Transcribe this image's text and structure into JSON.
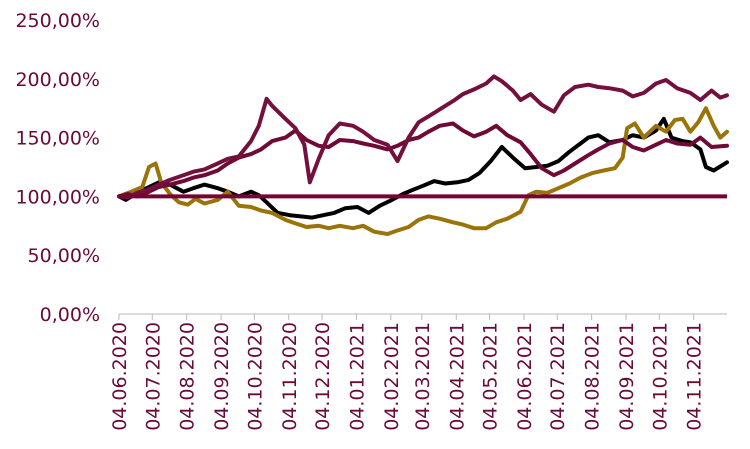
{
  "chart_data": {
    "type": "line",
    "title": "",
    "xlabel": "",
    "ylabel": "",
    "x_range": [
      "2020-06-04",
      "2021-12-04"
    ],
    "ylim": [
      0,
      250
    ],
    "grid": false,
    "legend": "none",
    "y_ticks": [
      {
        "value": 0,
        "label": "0,00%"
      },
      {
        "value": 50,
        "label": "50,00%"
      },
      {
        "value": 100,
        "label": "100,00%"
      },
      {
        "value": 150,
        "label": "150,00%"
      },
      {
        "value": 200,
        "label": "200,00%"
      },
      {
        "value": 250,
        "label": "250,00%"
      }
    ],
    "x_ticks": [
      {
        "date": "2020-06-04",
        "label": "04.06.2020"
      },
      {
        "date": "2020-07-04",
        "label": "04.07.2020"
      },
      {
        "date": "2020-08-04",
        "label": "04.08.2020"
      },
      {
        "date": "2020-09-04",
        "label": "04.09.2020"
      },
      {
        "date": "2020-10-04",
        "label": "04.10.2020"
      },
      {
        "date": "2020-11-04",
        "label": "04.11.2020"
      },
      {
        "date": "2020-12-04",
        "label": "04.12.2020"
      },
      {
        "date": "2021-01-04",
        "label": "04.01.2021"
      },
      {
        "date": "2021-02-04",
        "label": "04.02.2021"
      },
      {
        "date": "2021-03-04",
        "label": "04.03.2021"
      },
      {
        "date": "2021-04-04",
        "label": "04.04.2021"
      },
      {
        "date": "2021-05-04",
        "label": "04.05.2021"
      },
      {
        "date": "2021-06-04",
        "label": "04.06.2021"
      },
      {
        "date": "2021-07-04",
        "label": "04.07.2021"
      },
      {
        "date": "2021-08-04",
        "label": "04.08.2021"
      },
      {
        "date": "2021-09-04",
        "label": "04.09.2021"
      },
      {
        "date": "2021-10-04",
        "label": "04.10.2021"
      },
      {
        "date": "2021-11-04",
        "label": "04.11.2021"
      }
    ],
    "colors": {
      "axis_text": "#6a0a3a",
      "reference": "#730534"
    },
    "series": [
      {
        "color": "#000000",
        "points": [
          [
            "2020-06-04",
            100
          ],
          [
            "2020-06-10",
            97
          ],
          [
            "2020-06-20",
            103
          ],
          [
            "2020-07-01",
            108
          ],
          [
            "2020-07-10",
            112
          ],
          [
            "2020-07-20",
            110
          ],
          [
            "2020-08-01",
            104
          ],
          [
            "2020-08-10",
            107
          ],
          [
            "2020-08-20",
            110
          ],
          [
            "2020-09-01",
            107
          ],
          [
            "2020-09-10",
            104
          ],
          [
            "2020-09-20",
            100
          ],
          [
            "2020-10-01",
            104
          ],
          [
            "2020-10-08",
            101
          ],
          [
            "2020-10-15",
            95
          ],
          [
            "2020-10-25",
            86
          ],
          [
            "2020-11-05",
            84
          ],
          [
            "2020-11-15",
            83
          ],
          [
            "2020-11-25",
            82
          ],
          [
            "2020-12-05",
            84
          ],
          [
            "2020-12-15",
            86
          ],
          [
            "2020-12-25",
            90
          ],
          [
            "2021-01-05",
            91
          ],
          [
            "2021-01-15",
            86
          ],
          [
            "2021-01-25",
            92
          ],
          [
            "2021-02-05",
            97
          ],
          [
            "2021-02-15",
            102
          ],
          [
            "2021-02-25",
            106
          ],
          [
            "2021-03-05",
            109
          ],
          [
            "2021-03-15",
            113
          ],
          [
            "2021-03-25",
            111
          ],
          [
            "2021-04-05",
            112
          ],
          [
            "2021-04-15",
            114
          ],
          [
            "2021-04-25",
            120
          ],
          [
            "2021-05-05",
            130
          ],
          [
            "2021-05-15",
            142
          ],
          [
            "2021-05-25",
            133
          ],
          [
            "2021-06-05",
            124
          ],
          [
            "2021-06-15",
            125
          ],
          [
            "2021-06-25",
            126
          ],
          [
            "2021-07-05",
            130
          ],
          [
            "2021-07-15",
            138
          ],
          [
            "2021-07-25",
            145
          ],
          [
            "2021-08-01",
            150
          ],
          [
            "2021-08-10",
            152
          ],
          [
            "2021-08-20",
            146
          ],
          [
            "2021-09-01",
            148
          ],
          [
            "2021-09-10",
            152
          ],
          [
            "2021-09-20",
            150
          ],
          [
            "2021-10-01",
            156
          ],
          [
            "2021-10-08",
            166
          ],
          [
            "2021-10-15",
            150
          ],
          [
            "2021-10-25",
            147
          ],
          [
            "2021-11-01",
            146
          ],
          [
            "2021-11-10",
            140
          ],
          [
            "2021-11-15",
            125
          ],
          [
            "2021-11-22",
            122
          ],
          [
            "2021-12-04",
            129
          ]
        ]
      },
      {
        "color": "#9a7409",
        "points": [
          [
            "2020-06-04",
            100
          ],
          [
            "2020-06-15",
            104
          ],
          [
            "2020-06-25",
            108
          ],
          [
            "2020-07-01",
            125
          ],
          [
            "2020-07-07",
            128
          ],
          [
            "2020-07-12",
            112
          ],
          [
            "2020-07-20",
            102
          ],
          [
            "2020-07-28",
            95
          ],
          [
            "2020-08-05",
            93
          ],
          [
            "2020-08-12",
            98
          ],
          [
            "2020-08-20",
            94
          ],
          [
            "2020-09-01",
            97
          ],
          [
            "2020-09-10",
            104
          ],
          [
            "2020-09-20",
            92
          ],
          [
            "2020-10-01",
            91
          ],
          [
            "2020-10-10",
            88
          ],
          [
            "2020-10-20",
            86
          ],
          [
            "2020-11-01",
            80
          ],
          [
            "2020-11-10",
            77
          ],
          [
            "2020-11-20",
            74
          ],
          [
            "2020-12-01",
            75
          ],
          [
            "2020-12-10",
            73
          ],
          [
            "2020-12-20",
            75
          ],
          [
            "2021-01-01",
            73
          ],
          [
            "2021-01-10",
            75
          ],
          [
            "2021-01-20",
            70
          ],
          [
            "2021-02-01",
            68
          ],
          [
            "2021-02-10",
            71
          ],
          [
            "2021-02-20",
            74
          ],
          [
            "2021-03-01",
            80
          ],
          [
            "2021-03-10",
            83
          ],
          [
            "2021-03-20",
            81
          ],
          [
            "2021-04-01",
            78
          ],
          [
            "2021-04-10",
            76
          ],
          [
            "2021-04-20",
            73
          ],
          [
            "2021-05-01",
            73
          ],
          [
            "2021-05-10",
            78
          ],
          [
            "2021-05-20",
            81
          ],
          [
            "2021-06-01",
            87
          ],
          [
            "2021-06-08",
            101
          ],
          [
            "2021-06-15",
            104
          ],
          [
            "2021-06-25",
            103
          ],
          [
            "2021-07-05",
            107
          ],
          [
            "2021-07-15",
            111
          ],
          [
            "2021-07-25",
            116
          ],
          [
            "2021-08-05",
            120
          ],
          [
            "2021-08-15",
            122
          ],
          [
            "2021-08-25",
            124
          ],
          [
            "2021-09-01",
            133
          ],
          [
            "2021-09-05",
            158
          ],
          [
            "2021-09-12",
            162
          ],
          [
            "2021-09-20",
            150
          ],
          [
            "2021-10-01",
            160
          ],
          [
            "2021-10-10",
            155
          ],
          [
            "2021-10-18",
            165
          ],
          [
            "2021-10-25",
            166
          ],
          [
            "2021-11-01",
            155
          ],
          [
            "2021-11-08",
            163
          ],
          [
            "2021-11-15",
            175
          ],
          [
            "2021-11-22",
            160
          ],
          [
            "2021-11-28",
            150
          ],
          [
            "2021-12-04",
            155
          ]
        ]
      },
      {
        "color": "#6e0a35",
        "points": [
          [
            "2020-06-04",
            100
          ],
          [
            "2020-06-12",
            102
          ],
          [
            "2020-06-20",
            100
          ],
          [
            "2020-07-01",
            104
          ],
          [
            "2020-07-10",
            108
          ],
          [
            "2020-07-20",
            110
          ],
          [
            "2020-08-01",
            113
          ],
          [
            "2020-08-10",
            116
          ],
          [
            "2020-08-20",
            118
          ],
          [
            "2020-09-01",
            122
          ],
          [
            "2020-09-10",
            128
          ],
          [
            "2020-09-20",
            133
          ],
          [
            "2020-10-01",
            136
          ],
          [
            "2020-10-10",
            140
          ],
          [
            "2020-10-20",
            147
          ],
          [
            "2020-11-01",
            150
          ],
          [
            "2020-11-10",
            156
          ],
          [
            "2020-11-20",
            148
          ],
          [
            "2020-12-01",
            143
          ],
          [
            "2020-12-10",
            142
          ],
          [
            "2020-12-20",
            148
          ],
          [
            "2021-01-01",
            147
          ],
          [
            "2021-01-10",
            145
          ],
          [
            "2021-01-20",
            143
          ],
          [
            "2021-02-01",
            140
          ],
          [
            "2021-02-10",
            143
          ],
          [
            "2021-02-20",
            148
          ],
          [
            "2021-03-01",
            150
          ],
          [
            "2021-03-10",
            155
          ],
          [
            "2021-03-20",
            160
          ],
          [
            "2021-04-01",
            162
          ],
          [
            "2021-04-10",
            156
          ],
          [
            "2021-04-20",
            151
          ],
          [
            "2021-05-01",
            155
          ],
          [
            "2021-05-10",
            160
          ],
          [
            "2021-05-20",
            152
          ],
          [
            "2021-06-01",
            146
          ],
          [
            "2021-06-10",
            136
          ],
          [
            "2021-06-20",
            124
          ],
          [
            "2021-07-01",
            118
          ],
          [
            "2021-07-10",
            122
          ],
          [
            "2021-07-20",
            128
          ],
          [
            "2021-08-01",
            135
          ],
          [
            "2021-08-10",
            140
          ],
          [
            "2021-08-20",
            145
          ],
          [
            "2021-09-01",
            148
          ],
          [
            "2021-09-10",
            142
          ],
          [
            "2021-09-20",
            139
          ],
          [
            "2021-10-01",
            144
          ],
          [
            "2021-10-10",
            148
          ],
          [
            "2021-10-20",
            145
          ],
          [
            "2021-11-01",
            144
          ],
          [
            "2021-11-10",
            150
          ],
          [
            "2021-11-20",
            142
          ],
          [
            "2021-12-04",
            143
          ]
        ]
      },
      {
        "color": "#74103d",
        "points": [
          [
            "2020-06-04",
            100
          ],
          [
            "2020-06-12",
            99
          ],
          [
            "2020-06-20",
            103
          ],
          [
            "2020-07-01",
            106
          ],
          [
            "2020-07-10",
            110
          ],
          [
            "2020-07-20",
            114
          ],
          [
            "2020-08-01",
            118
          ],
          [
            "2020-08-10",
            121
          ],
          [
            "2020-08-20",
            123
          ],
          [
            "2020-09-01",
            128
          ],
          [
            "2020-09-10",
            132
          ],
          [
            "2020-09-20",
            134
          ],
          [
            "2020-10-01",
            147
          ],
          [
            "2020-10-08",
            160
          ],
          [
            "2020-10-15",
            183
          ],
          [
            "2020-10-20",
            177
          ],
          [
            "2020-11-01",
            166
          ],
          [
            "2020-11-10",
            158
          ],
          [
            "2020-11-18",
            144
          ],
          [
            "2020-11-23",
            112
          ],
          [
            "2020-12-01",
            132
          ],
          [
            "2020-12-10",
            152
          ],
          [
            "2020-12-20",
            162
          ],
          [
            "2021-01-01",
            160
          ],
          [
            "2021-01-10",
            155
          ],
          [
            "2021-01-20",
            148
          ],
          [
            "2021-02-01",
            144
          ],
          [
            "2021-02-10",
            130
          ],
          [
            "2021-02-20",
            150
          ],
          [
            "2021-03-01",
            163
          ],
          [
            "2021-03-10",
            168
          ],
          [
            "2021-03-20",
            174
          ],
          [
            "2021-04-01",
            181
          ],
          [
            "2021-04-10",
            187
          ],
          [
            "2021-04-20",
            191
          ],
          [
            "2021-05-01",
            196
          ],
          [
            "2021-05-08",
            202
          ],
          [
            "2021-05-15",
            198
          ],
          [
            "2021-05-25",
            190
          ],
          [
            "2021-06-01",
            182
          ],
          [
            "2021-06-10",
            187
          ],
          [
            "2021-06-20",
            178
          ],
          [
            "2021-07-01",
            172
          ],
          [
            "2021-07-10",
            186
          ],
          [
            "2021-07-20",
            193
          ],
          [
            "2021-08-01",
            195
          ],
          [
            "2021-08-10",
            193
          ],
          [
            "2021-08-20",
            192
          ],
          [
            "2021-09-01",
            190
          ],
          [
            "2021-09-10",
            185
          ],
          [
            "2021-09-20",
            188
          ],
          [
            "2021-10-01",
            196
          ],
          [
            "2021-10-10",
            199
          ],
          [
            "2021-10-20",
            192
          ],
          [
            "2021-11-01",
            188
          ],
          [
            "2021-11-10",
            182
          ],
          [
            "2021-11-20",
            190
          ],
          [
            "2021-11-28",
            184
          ],
          [
            "2021-12-04",
            186
          ]
        ]
      }
    ],
    "reference_line": {
      "value": 100
    }
  }
}
